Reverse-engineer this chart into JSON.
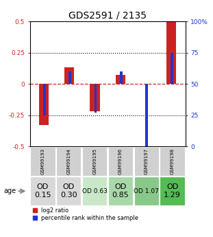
{
  "title": "GDS2591 / 2135",
  "samples": [
    "GSM99193",
    "GSM99194",
    "GSM99195",
    "GSM99196",
    "GSM99197",
    "GSM99198"
  ],
  "log2_ratio": [
    -0.33,
    0.13,
    -0.22,
    0.07,
    0.0,
    0.5
  ],
  "percentile_rank": [
    25,
    60,
    27,
    60,
    0,
    75
  ],
  "ylim_left": [
    -0.5,
    0.5
  ],
  "ylim_right": [
    0,
    100
  ],
  "yticks_left": [
    -0.5,
    -0.25,
    0,
    0.25,
    0.5
  ],
  "ytick_labels_left": [
    "-0.5",
    "-0.25",
    "0",
    "0.25",
    "0.5"
  ],
  "yticks_right": [
    0,
    25,
    50,
    75,
    100
  ],
  "ytick_labels_right": [
    "0",
    "25",
    "50",
    "75",
    "100%"
  ],
  "bar_color_red": "#cc2222",
  "bar_color_blue": "#2233cc",
  "zero_line_color": "#cc2222",
  "row_labels": [
    "OD\n0.15",
    "OD\n0.30",
    "OD 0.63",
    "OD\n0.85",
    "OD 1.07",
    "OD\n1.29"
  ],
  "row_bg_colors": [
    "#d8d8d8",
    "#d8d8d8",
    "#c8e8c8",
    "#a8d8a8",
    "#88c888",
    "#55bb55"
  ],
  "row_label_sizes": [
    8,
    8,
    6.5,
    8,
    6.5,
    8
  ],
  "age_label": "age",
  "legend1": "log2 ratio",
  "legend2": "percentile rank within the sample",
  "title_fontsize": 10,
  "axis_label_color_left": "#cc2222",
  "axis_label_color_right": "#2233cc",
  "background_color": "#ffffff"
}
